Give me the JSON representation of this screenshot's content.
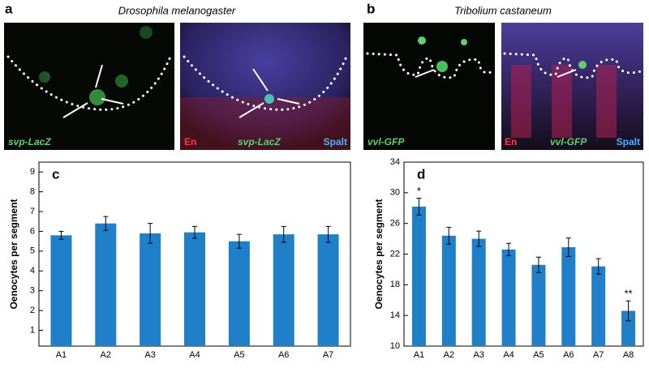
{
  "panels": {
    "a": {
      "label": "a",
      "title": "Drosophila melanogaster",
      "left_stain": "svp-LacZ",
      "right_stains": [
        "En",
        "svp-LacZ",
        "Spalt"
      ]
    },
    "b": {
      "label": "b",
      "title": "Tribolium castaneum",
      "left_stain": "vvl-GFP",
      "right_stains": [
        "En",
        "vvl-GFP",
        "Spalt"
      ]
    }
  },
  "chart_data": [
    {
      "type": "bar",
      "panel_label": "c",
      "ylabel": "Oenocytes per segment",
      "color": "#1f7fc8",
      "categories": [
        "A1",
        "A2",
        "A3",
        "A4",
        "A5",
        "A6",
        "A7"
      ],
      "values": [
        5.8,
        6.4,
        5.9,
        5.95,
        5.5,
        5.85,
        5.85
      ],
      "errors": [
        0.2,
        0.35,
        0.5,
        0.3,
        0.35,
        0.4,
        0.4
      ],
      "ylim": [
        0.2,
        9.5
      ],
      "yticks": [
        1,
        2,
        3,
        4,
        5,
        6,
        7,
        8,
        9
      ]
    },
    {
      "type": "bar",
      "panel_label": "d",
      "ylabel": "Oenocytes per segment",
      "color": "#1f7fc8",
      "categories": [
        "A1",
        "A2",
        "A3",
        "A4",
        "A5",
        "A6",
        "A7",
        "A8"
      ],
      "values": [
        28.2,
        24.4,
        24.0,
        22.6,
        20.6,
        22.9,
        20.4,
        14.6
      ],
      "errors": [
        1.1,
        1.1,
        1.0,
        0.8,
        1.0,
        1.2,
        1.0,
        1.3
      ],
      "annotations": [
        {
          "text": "*",
          "category": "A1"
        },
        {
          "text": "**",
          "category": "A8"
        }
      ],
      "ylim": [
        10,
        34
      ],
      "yticks": [
        10,
        14,
        18,
        22,
        26,
        30,
        34
      ]
    }
  ]
}
